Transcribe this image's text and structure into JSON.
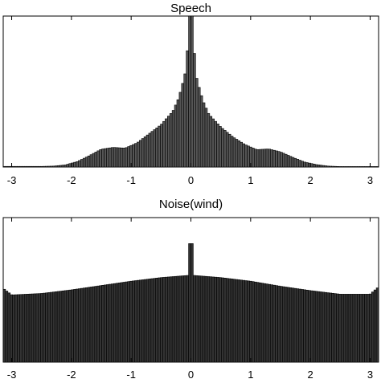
{
  "chart_data": [
    {
      "type": "bar",
      "title": "Speech",
      "xlim": [
        -3.1416,
        3.1416
      ],
      "ylim": [
        0,
        1
      ],
      "x_ticks": [
        -3,
        -2,
        -1,
        0,
        1,
        2,
        3
      ],
      "x_tick_labels": [
        "-3",
        "-2",
        "-1",
        "0",
        "1",
        "2",
        "3"
      ],
      "bar_color": "#555555",
      "bar_edge_color": "#000000",
      "bins": [
        {
          "x": -2.5,
          "y": 0.004
        },
        {
          "x": -2.3,
          "y": 0.006
        },
        {
          "x": -2.1,
          "y": 0.014
        },
        {
          "x": -1.9,
          "y": 0.036
        },
        {
          "x": -1.7,
          "y": 0.075
        },
        {
          "x": -1.5,
          "y": 0.118
        },
        {
          "x": -1.3,
          "y": 0.13
        },
        {
          "x": -1.1,
          "y": 0.125
        },
        {
          "x": -0.9,
          "y": 0.16
        },
        {
          "x": -0.7,
          "y": 0.22
        },
        {
          "x": -0.5,
          "y": 0.28
        },
        {
          "x": -0.3,
          "y": 0.37
        },
        {
          "x": -0.2,
          "y": 0.46
        },
        {
          "x": -0.1,
          "y": 0.61
        },
        {
          "x": 0.0,
          "y": 1.0
        },
        {
          "x": 0.1,
          "y": 0.58
        },
        {
          "x": 0.2,
          "y": 0.44
        },
        {
          "x": 0.3,
          "y": 0.35
        },
        {
          "x": 0.5,
          "y": 0.265
        },
        {
          "x": 0.7,
          "y": 0.2
        },
        {
          "x": 0.9,
          "y": 0.15
        },
        {
          "x": 1.1,
          "y": 0.115
        },
        {
          "x": 1.3,
          "y": 0.12
        },
        {
          "x": 1.5,
          "y": 0.1
        },
        {
          "x": 1.7,
          "y": 0.065
        },
        {
          "x": 1.9,
          "y": 0.033
        },
        {
          "x": 2.1,
          "y": 0.016
        },
        {
          "x": 2.3,
          "y": 0.006
        },
        {
          "x": 2.5,
          "y": 0.003
        }
      ]
    },
    {
      "type": "bar",
      "title": "Noise(wind)",
      "xlim": [
        -3.1416,
        3.1416
      ],
      "ylim": [
        0,
        1
      ],
      "x_ticks": [
        -3,
        -2,
        -1,
        0,
        1,
        2,
        3
      ],
      "x_tick_labels": [
        "-3",
        "-2",
        "-1",
        "0",
        "1",
        "2",
        "3"
      ],
      "bar_color": "#333333",
      "bar_edge_color": "#000000",
      "bins": [
        {
          "x": -3.14,
          "y": 0.51
        },
        {
          "x": -3.0,
          "y": 0.465
        },
        {
          "x": -2.5,
          "y": 0.475
        },
        {
          "x": -2.0,
          "y": 0.5
        },
        {
          "x": -1.5,
          "y": 0.53
        },
        {
          "x": -1.0,
          "y": 0.56
        },
        {
          "x": -0.5,
          "y": 0.585
        },
        {
          "x": -0.05,
          "y": 0.6
        },
        {
          "x": 0.0,
          "y": 0.82
        },
        {
          "x": 0.05,
          "y": 0.6
        },
        {
          "x": 0.5,
          "y": 0.585
        },
        {
          "x": 1.0,
          "y": 0.56
        },
        {
          "x": 1.5,
          "y": 0.525
        },
        {
          "x": 2.0,
          "y": 0.495
        },
        {
          "x": 2.5,
          "y": 0.47
        },
        {
          "x": 3.0,
          "y": 0.47
        },
        {
          "x": 3.14,
          "y": 0.52
        }
      ]
    }
  ]
}
